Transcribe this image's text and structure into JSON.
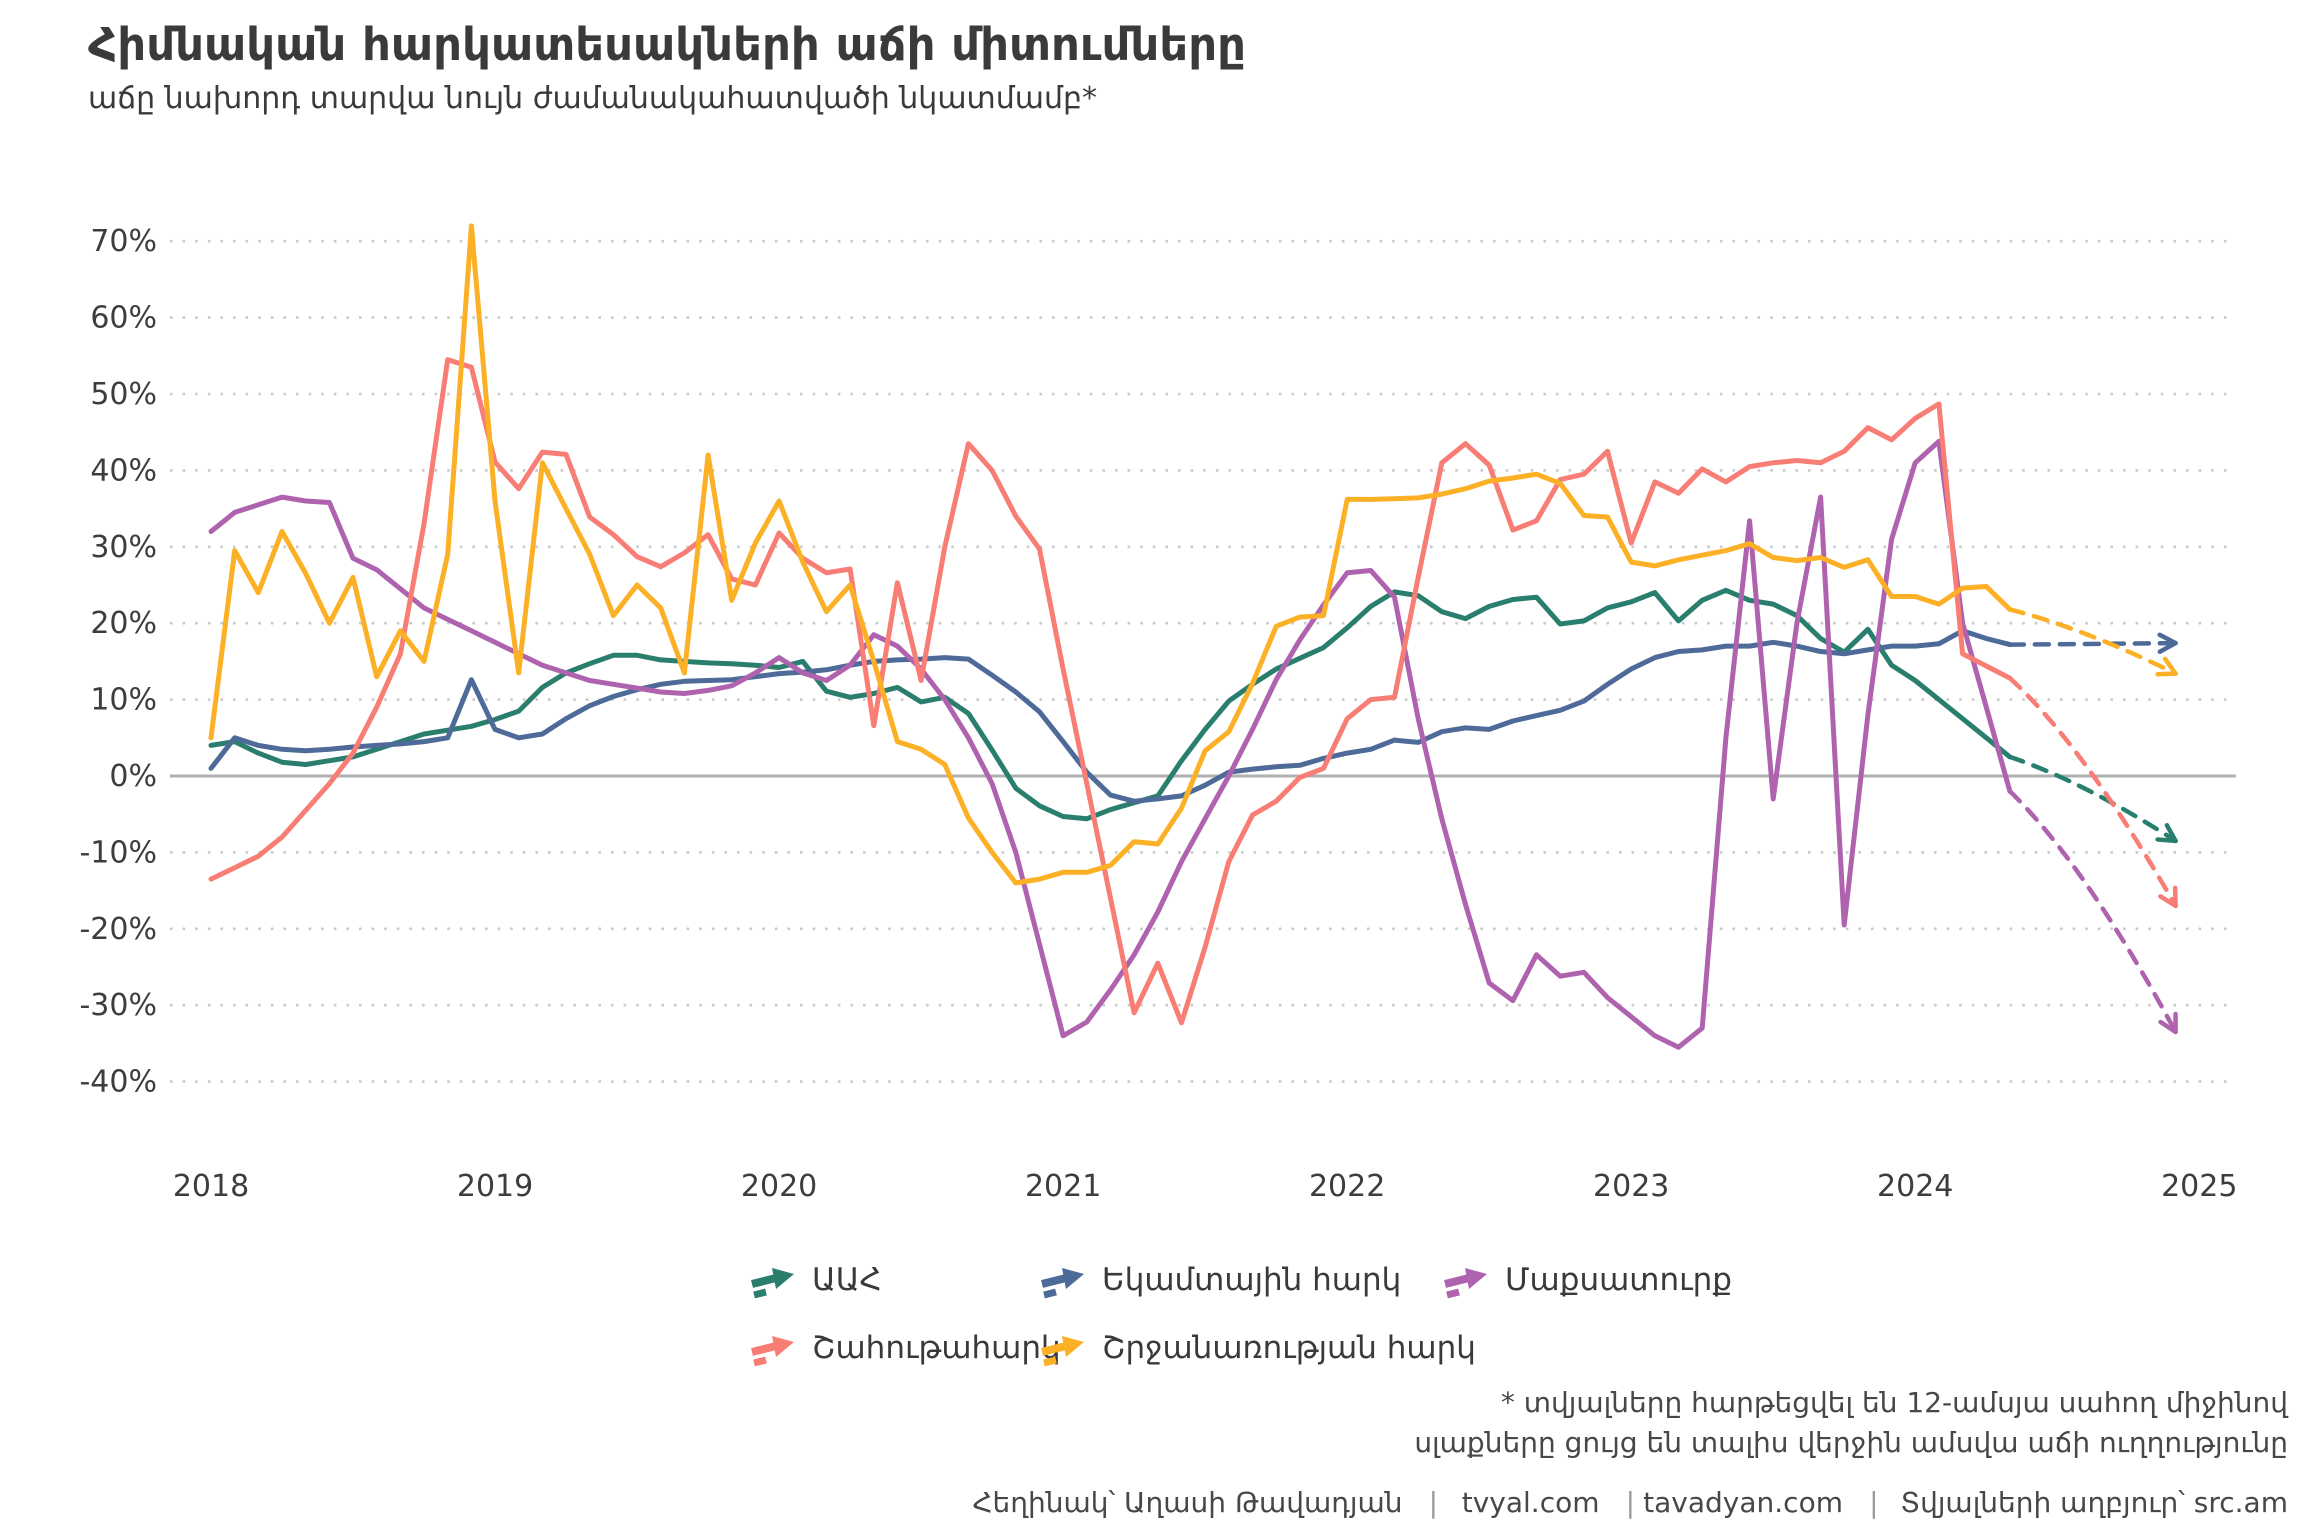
{
  "title": "Հիմնական հարկատեսակների աճի միտումները",
  "subtitle": "աճը նախորդ տարվա նույն ժամանակահատվածի նկատմամբ*",
  "footnote": {
    "line1": "* տվյալները հարթեցվել են 12-ամսյա սահող միջինով",
    "line2": "սլաքները ցույց են տալիս վերջին ամսվա աճի ուղղությունը"
  },
  "credit": {
    "author": "Հեղինակ՝ Աղասի Թավադյան",
    "site1": "tvyal.com",
    "site2": "tavadyan.com",
    "source": "Տվյալների աղբյուր՝ src.am",
    "separator": "|"
  },
  "colors": {
    "background": "#ffffff",
    "gridline": "#c9c9c9",
    "zero_line": "#b0b0b0",
    "text": "#3a3a3a",
    "vat": "#2a7e6d",
    "income_tax": "#4e6a98",
    "customs_duty": "#af63ae",
    "profit_tax": "#f87d74",
    "turnover_tax": "#fcb025"
  },
  "legend": {
    "rows": [
      {
        "items": [
          {
            "label": "ԱԱՀ",
            "color_key": "vat"
          },
          {
            "label": "Եկամտային հարկ",
            "color_key": "income_tax"
          },
          {
            "label": "Մաքսատուրք",
            "color_key": "customs_duty"
          }
        ]
      },
      {
        "items": [
          {
            "label": "Շահութահարկ",
            "color_key": "profit_tax"
          },
          {
            "label": "Շրջանառության հարկ",
            "color_key": "turnover_tax"
          }
        ]
      }
    ]
  },
  "chart_data": {
    "type": "line",
    "title": "Հիմնական հարկատեսակների աճի միտումները",
    "subtitle": "աճը նախորդ տարվա նույն ժամանակահատվածի նկատմամբ*",
    "x_start_month": "2018-01",
    "x_solid_end_month": "2024-05",
    "x_forecast_end_month": "2024-12",
    "grid": "horizontal-dotted",
    "y_axis": {
      "unit": "%",
      "min": -40,
      "max": 70,
      "step": 10,
      "tick_values": [
        70,
        60,
        50,
        40,
        30,
        20,
        10,
        0,
        -10,
        -20,
        -30,
        -40
      ],
      "tick_labels": [
        "70%",
        "60%",
        "50%",
        "40%",
        "30%",
        "20%",
        "10%",
        "0%",
        "-10%",
        "-20%",
        "-30%",
        "-40%"
      ]
    },
    "x_axis": {
      "tick_labels": [
        "2018",
        "2019",
        "2020",
        "2021",
        "2022",
        "2023",
        "2024",
        "2025"
      ]
    },
    "series": [
      {
        "name": "ԱԱՀ",
        "key": "vat",
        "color_key": "vat",
        "values": [
          4.0,
          4.5,
          3.0,
          1.8,
          1.5,
          2.0,
          2.5,
          3.5,
          4.5,
          5.5,
          6.0,
          6.5,
          7.4,
          8.5,
          11.6,
          13.5,
          14.7,
          15.8,
          15.8,
          15.2,
          15.0,
          14.8,
          14.7,
          14.5,
          14.2,
          15.0,
          11.1,
          10.3,
          10.8,
          11.6,
          9.7,
          10.3,
          8.2,
          3.4,
          -1.6,
          -3.9,
          -5.3,
          -5.6,
          -4.4,
          -3.5,
          -2.6,
          2.0,
          6.1,
          9.8,
          12.0,
          14.0,
          15.4,
          16.8,
          19.4,
          22.2,
          24.1,
          23.6,
          21.5,
          20.6,
          22.2,
          23.1,
          23.4,
          19.9,
          20.3,
          22.0,
          22.8,
          24.0,
          20.3,
          23.0,
          24.3,
          23.0,
          22.5,
          21.0,
          18.0,
          16.2,
          19.2,
          14.5,
          12.5,
          10.0,
          7.5,
          5.0,
          2.5
        ],
        "forecast_end_value": -8.5
      },
      {
        "name": "Եկամտային հարկ",
        "key": "income_tax",
        "color_key": "income_tax",
        "values": [
          1.0,
          5.0,
          4.0,
          3.5,
          3.3,
          3.5,
          3.8,
          4.0,
          4.2,
          4.5,
          5.0,
          12.6,
          6.1,
          5.0,
          5.5,
          7.5,
          9.2,
          10.4,
          11.3,
          12.0,
          12.4,
          12.5,
          12.6,
          13.0,
          13.4,
          13.6,
          13.9,
          14.5,
          15.0,
          15.2,
          15.3,
          15.5,
          15.3,
          13.2,
          11.0,
          8.4,
          4.5,
          0.5,
          -2.5,
          -3.3,
          -3.0,
          -2.6,
          -1.2,
          0.5,
          0.9,
          1.2,
          1.4,
          2.3,
          3.0,
          3.5,
          4.7,
          4.4,
          5.8,
          6.3,
          6.1,
          7.2,
          7.9,
          8.6,
          9.8,
          12.0,
          14.0,
          15.5,
          16.3,
          16.5,
          17.0,
          17.0,
          17.5,
          17.0,
          16.3,
          16.0,
          16.5,
          17.0,
          17.0,
          17.3,
          19.0,
          18.0,
          17.2
        ],
        "forecast_end_value": 17.4
      },
      {
        "name": "Մաքսատուրք",
        "key": "customs_duty",
        "color_key": "customs_duty",
        "values": [
          32.0,
          34.5,
          35.5,
          36.5,
          36.0,
          35.8,
          28.5,
          27.0,
          24.5,
          22.0,
          20.5,
          19.0,
          17.5,
          16.0,
          14.5,
          13.5,
          12.5,
          12.0,
          11.5,
          11.0,
          10.8,
          11.2,
          11.8,
          13.5,
          15.5,
          13.5,
          12.5,
          14.5,
          18.5,
          17.0,
          14.0,
          10.0,
          5.0,
          -1.0,
          -10.0,
          -22.0,
          -34.0,
          -32.2,
          -28.0,
          -23.4,
          -17.8,
          -11.2,
          -5.6,
          0.0,
          6.1,
          12.6,
          17.8,
          22.4,
          26.6,
          26.9,
          23.4,
          7.5,
          -5.6,
          -16.8,
          -27.1,
          -29.4,
          -23.4,
          -26.2,
          -25.7,
          -29.0,
          -31.5,
          -34.0,
          -35.5,
          -33.0,
          5.0,
          33.4,
          -3.0,
          20.0,
          36.5,
          -19.5,
          8.0,
          31.0,
          41.0,
          43.8,
          20.0,
          9.0,
          -2.0
        ],
        "forecast_end_value": -33.5
      },
      {
        "name": "Շահութահարկ",
        "key": "profit_tax",
        "color_key": "profit_tax",
        "values": [
          -13.5,
          -12.0,
          -10.5,
          -8.0,
          -4.5,
          -1.0,
          3.0,
          9.0,
          16.0,
          33.0,
          54.5,
          53.5,
          41.1,
          37.6,
          42.4,
          42.1,
          33.9,
          31.6,
          28.7,
          27.4,
          29.2,
          31.6,
          25.8,
          25.0,
          31.8,
          28.5,
          26.6,
          27.1,
          6.6,
          25.3,
          12.5,
          30.0,
          43.5,
          40.0,
          34.0,
          29.7,
          14.0,
          -1.0,
          -16.0,
          -31.0,
          -24.5,
          -32.3,
          -22.4,
          -11.2,
          -5.1,
          -3.3,
          -0.2,
          1.0,
          7.5,
          10.0,
          10.3,
          26.0,
          41.0,
          43.5,
          40.7,
          32.2,
          33.4,
          38.8,
          39.5,
          42.5,
          30.5,
          38.5,
          37.0,
          40.2,
          38.5,
          40.5,
          41.0,
          41.3,
          41.0,
          42.5,
          45.6,
          44.0,
          46.8,
          48.7,
          16.0,
          14.4,
          12.8
        ],
        "forecast_end_value": -17.0
      },
      {
        "name": "Շրջանառության հարկ",
        "key": "turnover_tax",
        "color_key": "turnover_tax",
        "values": [
          5.0,
          29.5,
          24.0,
          32.0,
          26.5,
          20.0,
          26.0,
          13.0,
          19.0,
          15.0,
          29.0,
          72.0,
          36.0,
          13.5,
          41.0,
          35.0,
          29.0,
          21.0,
          25.0,
          22.0,
          13.5,
          42.0,
          23.0,
          30.5,
          36.0,
          28.0,
          21.5,
          25.0,
          15.0,
          4.5,
          3.5,
          1.5,
          -5.5,
          -10.0,
          -14.0,
          -13.5,
          -12.6,
          -12.6,
          -11.7,
          -8.6,
          -8.9,
          -4.2,
          3.3,
          5.8,
          12.1,
          19.6,
          20.8,
          21.0,
          36.2,
          36.2,
          36.3,
          36.4,
          36.9,
          37.6,
          38.6,
          39.0,
          39.5,
          38.3,
          34.1,
          33.9,
          28.0,
          27.5,
          28.3,
          28.9,
          29.5,
          30.4,
          28.6,
          28.2,
          28.6,
          27.3,
          28.3,
          23.5,
          23.5,
          22.5,
          24.6,
          24.8,
          21.8
        ],
        "forecast_end_value": 13.4
      }
    ]
  }
}
